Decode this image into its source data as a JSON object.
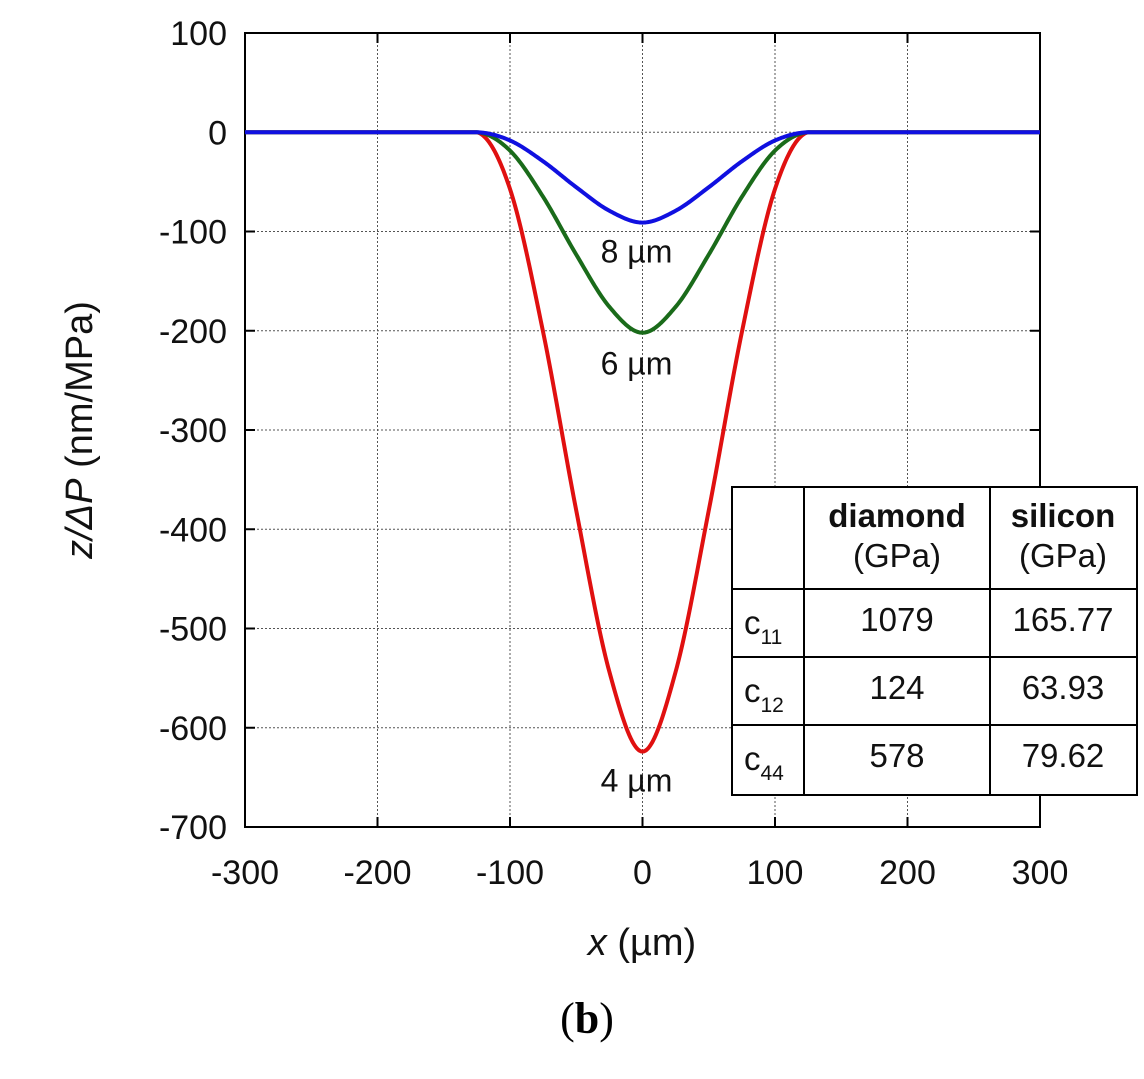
{
  "chart_data": {
    "type": "line",
    "xlabel_var": "x",
    "xlabel_unit": " (µm)",
    "ylabel_var": "z/ΔP",
    "ylabel_unit": " (nm/MPa)",
    "xlim": [
      -300,
      300
    ],
    "ylim": [
      -700,
      100
    ],
    "x_ticks": [
      -300,
      -200,
      -100,
      0,
      100,
      200,
      300
    ],
    "y_ticks": [
      100,
      0,
      -100,
      -200,
      -300,
      -400,
      -500,
      -600,
      -700
    ],
    "grid": true,
    "series": [
      {
        "name": "8 µm",
        "color": "#1010e0",
        "x": [
          -300,
          -125,
          -100,
          -75,
          -50,
          -25,
          0,
          25,
          50,
          75,
          100,
          125,
          300
        ],
        "y": [
          0,
          0,
          -8.3,
          -29.3,
          -55.4,
          -79.1,
          -91,
          -79.1,
          -55.4,
          -29.3,
          -8.3,
          0,
          0
        ]
      },
      {
        "name": "6 µm",
        "color": "#1a6b1a",
        "x": [
          -300,
          -125,
          -100,
          -75,
          -50,
          -25,
          0,
          25,
          50,
          75,
          100,
          125,
          300
        ],
        "y": [
          0,
          0,
          -18.5,
          -65.1,
          -123.3,
          -175.9,
          -202,
          -175.9,
          -123.3,
          -65.1,
          -18.5,
          0,
          0
        ]
      },
      {
        "name": "4 µm",
        "color": "#e01010",
        "x": [
          -300,
          -125,
          -100,
          -75,
          -50,
          -25,
          0,
          25,
          50,
          75,
          100,
          125,
          300
        ],
        "y": [
          0,
          0,
          -57.2,
          -201.4,
          -381.1,
          -543.6,
          -624,
          -543.6,
          -381.1,
          -201.4,
          -57.2,
          0,
          0
        ]
      }
    ],
    "annotations": [
      {
        "text": "8 µm",
        "x": 0,
        "y": -120
      },
      {
        "text": "6 µm",
        "x": 0,
        "y": -233
      },
      {
        "text": "4 µm",
        "x": 0,
        "y": -653
      }
    ],
    "inset_table": {
      "header": [
        {
          "main": "",
          "unit": ""
        },
        {
          "main": "diamond",
          "unit": "(GPa)"
        },
        {
          "main": "silicon",
          "unit": "(GPa)"
        }
      ],
      "rows": [
        {
          "label": "c",
          "sub": "11",
          "diamond": "1079",
          "silicon": "165.77"
        },
        {
          "label": "c",
          "sub": "12",
          "diamond": "124",
          "silicon": "63.93"
        },
        {
          "label": "c",
          "sub": "44",
          "diamond": "578",
          "silicon": "79.62"
        }
      ]
    }
  },
  "panel_label": {
    "open": "(",
    "letter": "b",
    "close": ")"
  }
}
